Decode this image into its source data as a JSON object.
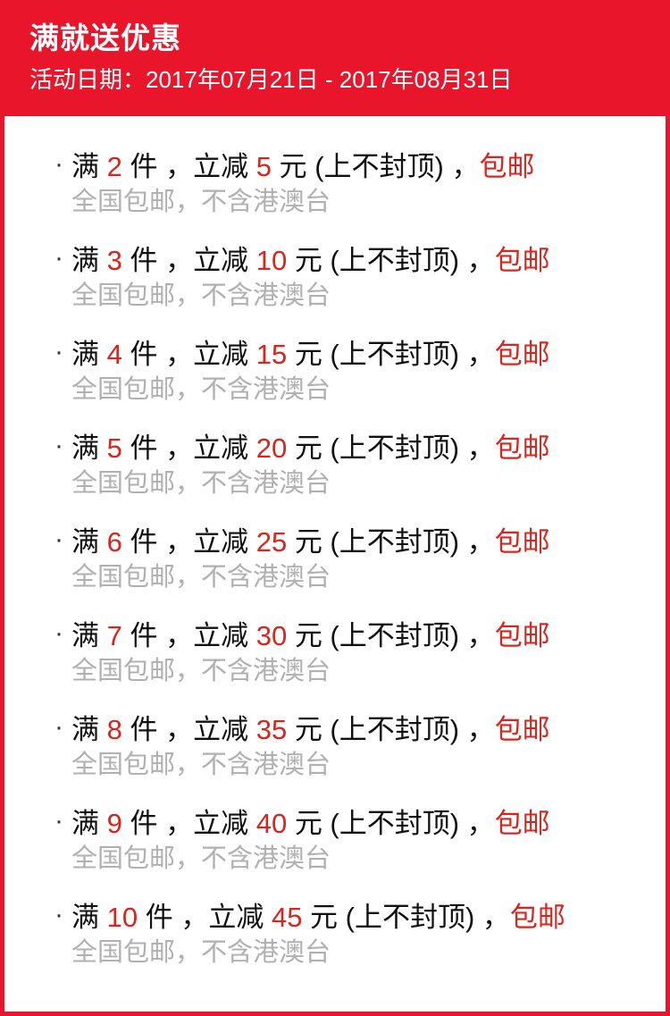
{
  "colors": {
    "header_background": "#E8152B",
    "accent_text_red": "#D9251D",
    "note_gray": "#B0B0B0",
    "main_text": "#111111"
  },
  "header": {
    "title": "满就送优惠",
    "date_line": "活动日期：2017年07月21日 - 2017年08月31日"
  },
  "strings": {
    "bullet": "·",
    "man": "满 ",
    "mid": " 件 ，立减 ",
    "suffix": " 元 (上不封顶) ，",
    "free_ship": "包邮",
    "note": "全国包邮，不含港澳台"
  },
  "offers": [
    {
      "qty": "2",
      "discount": "5"
    },
    {
      "qty": "3",
      "discount": "10"
    },
    {
      "qty": "4",
      "discount": "15"
    },
    {
      "qty": "5",
      "discount": "20"
    },
    {
      "qty": "6",
      "discount": "25"
    },
    {
      "qty": "7",
      "discount": "30"
    },
    {
      "qty": "8",
      "discount": "35"
    },
    {
      "qty": "9",
      "discount": "40"
    },
    {
      "qty": "10",
      "discount": "45"
    }
  ]
}
